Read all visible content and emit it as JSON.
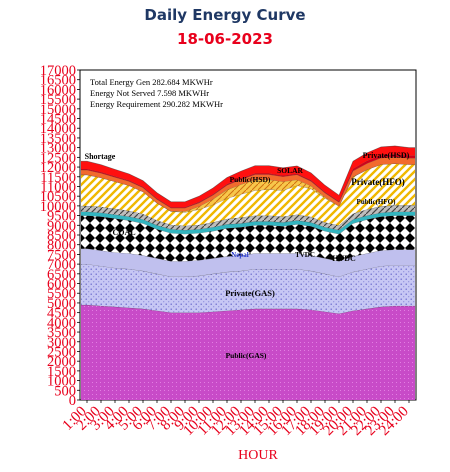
{
  "header": {
    "title": "Daily Energy Curve",
    "date": "18-06-2023"
  },
  "chart_data": {
    "type": "area",
    "title": "Daily Energy Curve",
    "subtitle": "18-06-2023",
    "xlabel": "HOUR",
    "ylabel": "",
    "ylim": [
      0,
      17000
    ],
    "y_ticks": [
      0,
      500,
      1000,
      1500,
      2000,
      2500,
      3000,
      3500,
      4000,
      4500,
      5000,
      5500,
      6000,
      6500,
      7000,
      7500,
      8000,
      8500,
      9000,
      9500,
      10000,
      10500,
      11000,
      11500,
      12000,
      12500,
      13000,
      13500,
      14000,
      14500,
      15000,
      15500,
      16000,
      16500,
      17000
    ],
    "categories": [
      "1:00",
      "2:00",
      "3:00",
      "4:00",
      "5:00",
      "6:00",
      "7:00",
      "8:00",
      "9:00",
      "10:00",
      "11:00",
      "12:00",
      "13:00",
      "14:00",
      "15:00",
      "16:00",
      "17:00",
      "18:00",
      "19:00",
      "20:00",
      "21:00",
      "22:00",
      "23:00",
      "24:00"
    ],
    "stacked": true,
    "annotation": [
      "Total Energy Gen 282.684 MKWHr",
      "Energy Not Served   7.598 MKWHr",
      "Energy Requirement     290.282 MKWHr"
    ],
    "series": [
      {
        "name": "Public(GAS)",
        "color": "#c84bc8",
        "values": [
          4900,
          4850,
          4800,
          4750,
          4700,
          4600,
          4500,
          4500,
          4500,
          4550,
          4600,
          4650,
          4700,
          4700,
          4700,
          4700,
          4650,
          4550,
          4450,
          4600,
          4700,
          4800,
          4850,
          4850
        ]
      },
      {
        "name": "Private(GAS)",
        "color": "#b8b8f0",
        "values": [
          2100,
          2050,
          2000,
          2000,
          1950,
          1900,
          1850,
          1850,
          1900,
          1950,
          2000,
          2000,
          2050,
          2050,
          2050,
          2050,
          2000,
          1950,
          1900,
          2000,
          2050,
          2100,
          2100,
          2100
        ]
      },
      {
        "name": "HVDC",
        "color": "#c8c8f0",
        "values": [
          800,
          800,
          800,
          800,
          800,
          800,
          800,
          800,
          800,
          800,
          800,
          800,
          800,
          800,
          800,
          800,
          800,
          800,
          800,
          800,
          800,
          800,
          800,
          800
        ]
      },
      {
        "name": "COAL",
        "color": "#000000",
        "values": [
          1700,
          1750,
          1750,
          1700,
          1650,
          1500,
          1450,
          1400,
          1400,
          1400,
          1450,
          1450,
          1450,
          1450,
          1400,
          1500,
          1500,
          1400,
          1400,
          1700,
          1750,
          1750,
          1750,
          1750
        ]
      },
      {
        "name": "Nepal",
        "color": "#2aa7a7",
        "values": [
          200,
          200,
          200,
          200,
          200,
          200,
          200,
          200,
          200,
          200,
          200,
          200,
          200,
          200,
          200,
          200,
          200,
          200,
          200,
          200,
          200,
          200,
          200,
          200
        ]
      },
      {
        "name": "Public(HFO)",
        "color": "#5a5a5a",
        "values": [
          300,
          300,
          300,
          300,
          280,
          250,
          220,
          220,
          220,
          250,
          280,
          300,
          300,
          300,
          300,
          300,
          280,
          250,
          240,
          300,
          320,
          330,
          330,
          330
        ]
      },
      {
        "name": "Private(HFO)",
        "color": "#f0c000",
        "values": [
          1600,
          1500,
          1400,
          1300,
          1150,
          900,
          700,
          700,
          800,
          900,
          1050,
          1200,
          1300,
          1350,
          1350,
          1500,
          1450,
          1250,
          1000,
          1900,
          2050,
          2150,
          2150,
          2100
        ]
      },
      {
        "name": "SOLAR",
        "color": "#f0a020",
        "values": [
          0,
          0,
          0,
          0,
          0,
          0,
          0,
          50,
          150,
          300,
          450,
          500,
          550,
          500,
          450,
          300,
          150,
          50,
          0,
          0,
          0,
          0,
          0,
          0
        ]
      },
      {
        "name": "Public(HSD)",
        "color": "#f05a28",
        "values": [
          250,
          240,
          230,
          220,
          210,
          190,
          170,
          170,
          190,
          210,
          240,
          260,
          270,
          270,
          260,
          260,
          240,
          220,
          200,
          300,
          320,
          340,
          340,
          330
        ]
      },
      {
        "name": "Private(HSD)",
        "color": "#e00010",
        "values": [
          50,
          50,
          40,
          40,
          40,
          40,
          40,
          40,
          40,
          40,
          40,
          50,
          50,
          50,
          50,
          50,
          50,
          40,
          40,
          100,
          120,
          130,
          130,
          120
        ]
      },
      {
        "name": "Shortage",
        "color": "#ff0000",
        "values": [
          400,
          380,
          360,
          340,
          320,
          300,
          280,
          280,
          300,
          320,
          350,
          380,
          400,
          400,
          400,
          400,
          380,
          350,
          320,
          400,
          420,
          440,
          440,
          420
        ]
      }
    ],
    "series_labels": [
      "Public(GAS)",
      "Private(GAS)",
      "HVDC",
      "COAL",
      "Nepal",
      "Public(HFO)",
      "Private(HFO)",
      "SOLAR",
      "Public(HSD)",
      "Private(HSD)",
      "Shortage",
      "TVDC"
    ]
  }
}
